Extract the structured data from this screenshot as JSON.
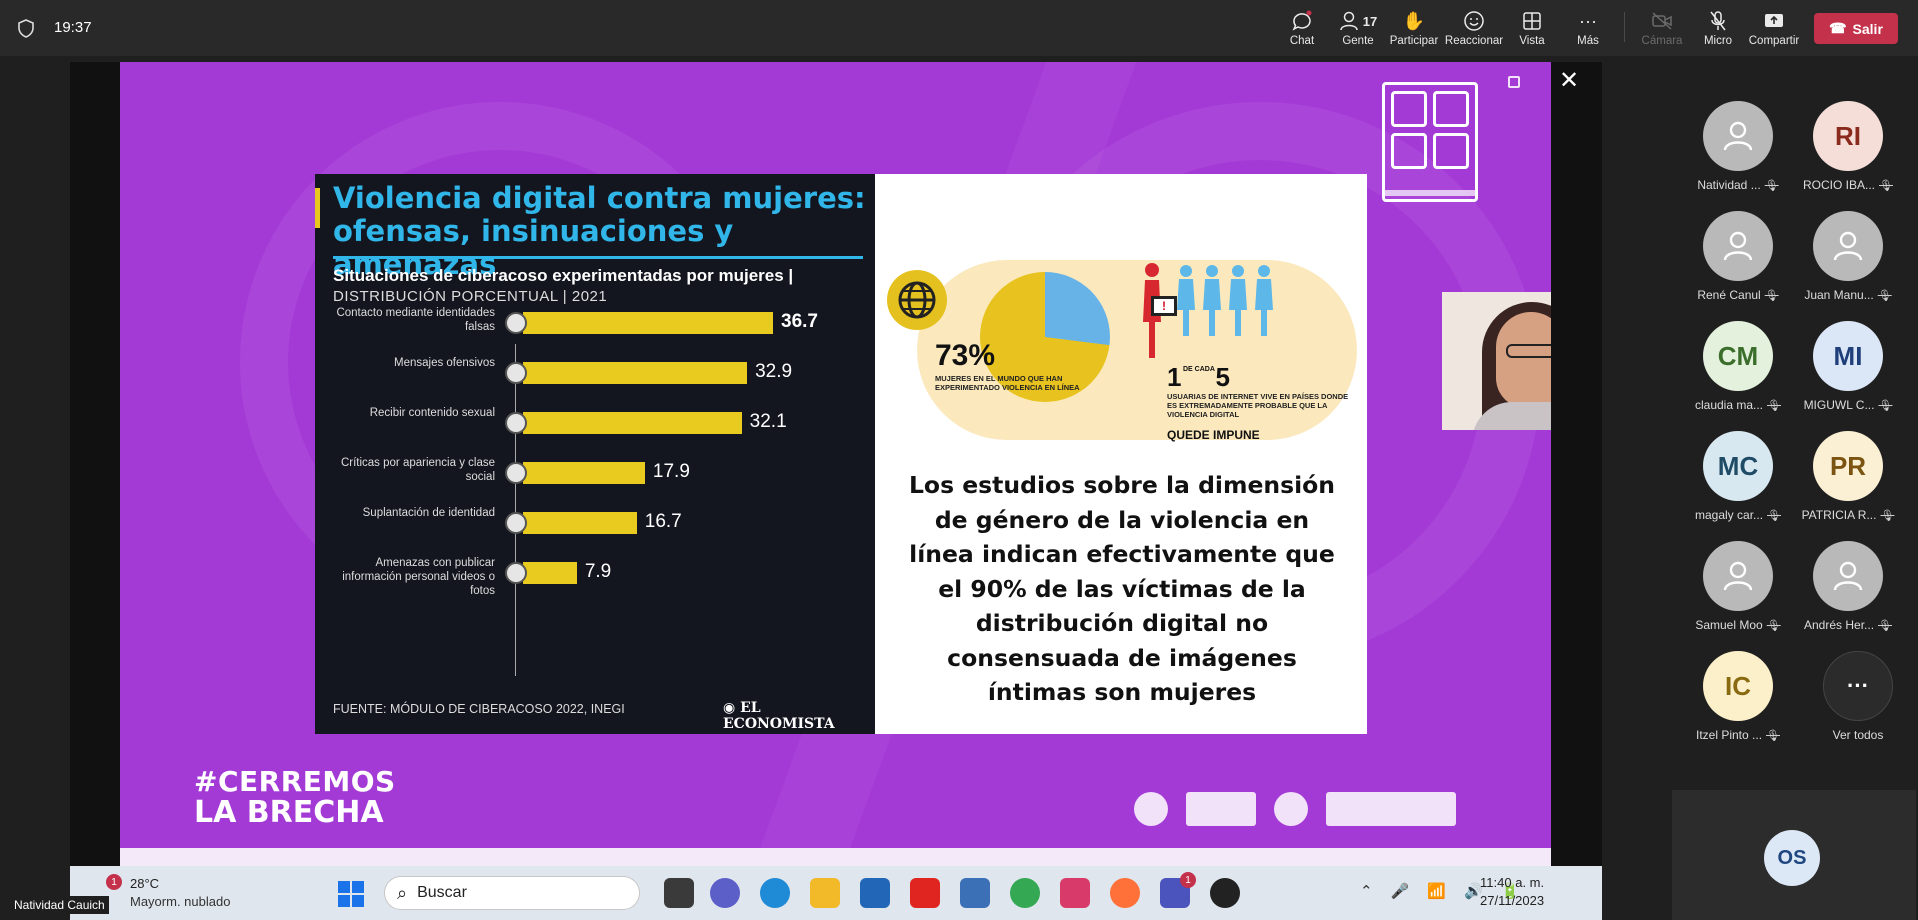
{
  "topbar": {
    "time": "19:37",
    "buttons": [
      {
        "label": "Chat",
        "icon": "chat-icon"
      },
      {
        "label": "Gente",
        "icon": "people-icon",
        "count": "17"
      },
      {
        "label": "Participar",
        "icon": "raise-hand-icon"
      },
      {
        "label": "Reaccionar",
        "icon": "emoji-icon"
      },
      {
        "label": "Vista",
        "icon": "grid-icon"
      },
      {
        "label": "Más",
        "icon": "more-icon"
      },
      {
        "label": "Cámara",
        "icon": "camera-off-icon"
      },
      {
        "label": "Micro",
        "icon": "mic-off-icon"
      },
      {
        "label": "Compartir",
        "icon": "share-icon"
      }
    ],
    "leave_label": "Salir"
  },
  "slide": {
    "title": "Violencia digital contra mujeres: ofensas, insinuaciones y amenazas",
    "subtitle": "Situaciones de ciberacoso experimentadas por mujeres |",
    "subtitle2": "DISTRIBUCIÓN PORCENTUAL | 2021",
    "source": "FUENTE: MÓDULO DE CIBERACOSO 2022, INEGI",
    "brand": "EL ECONOMISTA",
    "stat1_value": "73%",
    "stat1_text": "MUJERES EN EL MUNDO QUE HAN EXPERIMENTADO VIOLENCIA EN LÍNEA",
    "stat2_one": "1",
    "stat2_decada": "DE CADA",
    "stat2_five": "5",
    "stat2_text": "USUARIAS DE INTERNET VIVE EN PAÍSES DONDE ES EXTREMADAMENTE PROBABLE QUE LA VIOLENCIA DIGITAL",
    "stat2_strong": "QUEDE IMPUNE",
    "big_text": "Los estudios sobre la dimensión de género de la violencia en línea indican efectivamente que el 90% de las víctimas de la distribución digital no consensuada de imágenes íntimas son mujeres",
    "hashtag_line1": "#CERREMOS",
    "hashtag_line2": "LA BRECHA"
  },
  "chart_data": {
    "type": "bar",
    "title": "Situaciones de ciberacoso experimentadas por mujeres",
    "categories": [
      "Contacto mediante identidades falsas",
      "Mensajes ofensivos",
      "Recibir contenido sexual",
      "Críticas por apariencia y clase social",
      "Suplantación de identidad",
      "Amenazas con publicar información personal videos o fotos"
    ],
    "values": [
      36.7,
      32.9,
      32.1,
      17.9,
      16.7,
      7.9
    ],
    "orientation": "horizontal",
    "color": "#e9cb1f"
  },
  "participants": [
    {
      "name": "Natividad ...",
      "initials": "",
      "bg": "#b9b9b9",
      "fg": "#fff"
    },
    {
      "name": "ROCIO IBA...",
      "initials": "RI",
      "bg": "#f6ded8",
      "fg": "#8a2a1c"
    },
    {
      "name": "René Canul",
      "initials": "",
      "bg": "#b9b9b9",
      "fg": "#fff"
    },
    {
      "name": "Juan Manu...",
      "initials": "",
      "bg": "#b9b9b9",
      "fg": "#fff"
    },
    {
      "name": "claudia ma...",
      "initials": "CM",
      "bg": "#e3f1dd",
      "fg": "#3b6e2a"
    },
    {
      "name": "MIGUWL C...",
      "initials": "MI",
      "bg": "#dbe6f6",
      "fg": "#1f3f7a"
    },
    {
      "name": "magaly car...",
      "initials": "MC",
      "bg": "#d8e8f0",
      "fg": "#1f4b66"
    },
    {
      "name": "PATRICIA R...",
      "initials": "PR",
      "bg": "#fbefd4",
      "fg": "#7a5410"
    },
    {
      "name": "Samuel Moo",
      "initials": "",
      "bg": "#b9b9b9",
      "fg": "#fff"
    },
    {
      "name": "Andrés Her...",
      "initials": "",
      "bg": "#b9b9b9",
      "fg": "#fff"
    },
    {
      "name": "Itzel Pinto ...",
      "initials": "IC",
      "bg": "#fbf0c9",
      "fg": "#8a6a10"
    }
  ],
  "see_all_label": "Ver todos",
  "self_initials": "OS",
  "presenter_label": "Natividad Cauich",
  "taskbar": {
    "temp": "28°C",
    "weather": "Mayorm. nublado",
    "notif": "1",
    "search_placeholder": "Buscar",
    "teams_badge": "1",
    "time": "11:40 a. m.",
    "date": "27/11/2023"
  },
  "colors": {
    "slide_bg": "#a43ad6",
    "title_blue": "#31b6ea",
    "bar_yellow": "#e9cb1f",
    "leave_red": "#c4314b"
  }
}
